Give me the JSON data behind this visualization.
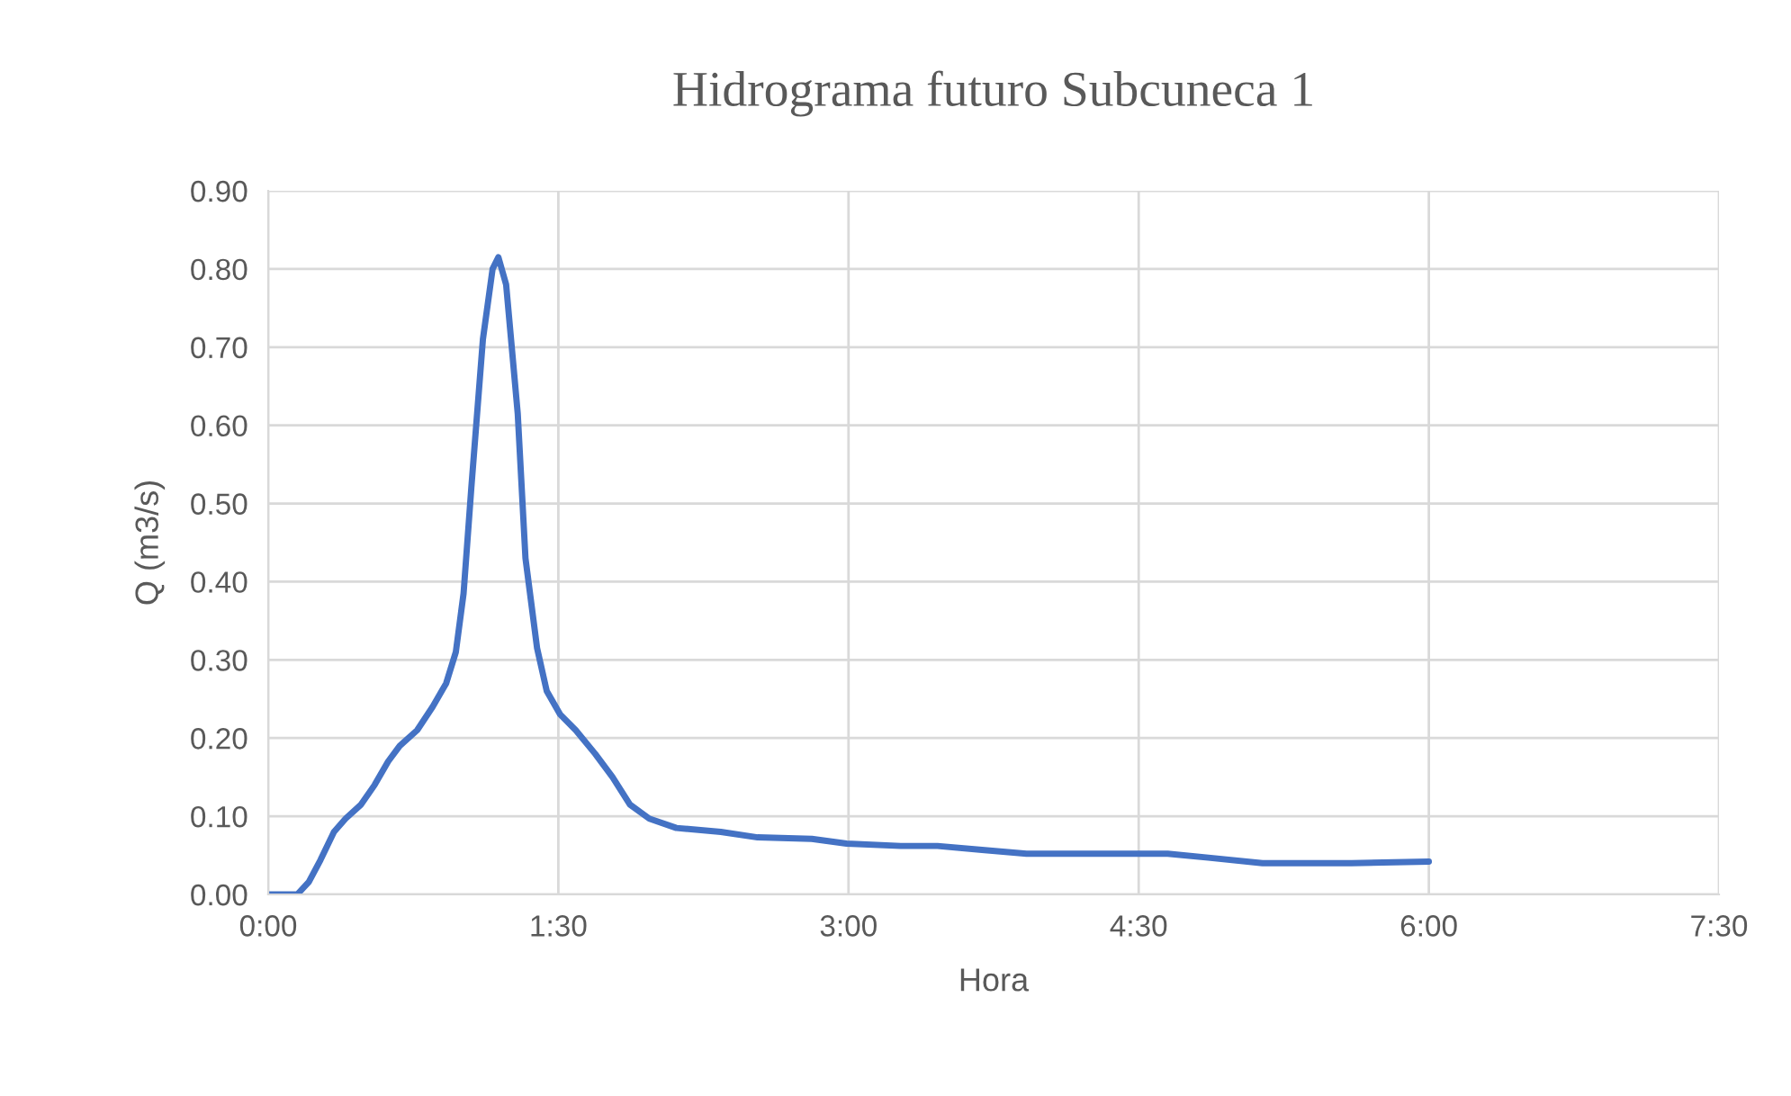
{
  "chart_data": {
    "type": "line",
    "title": "Hidrograma futuro Subcuneca 1",
    "xlabel": "Hora",
    "ylabel": "Q (m3/s)",
    "x": [
      0,
      0.15,
      0.21,
      0.27,
      0.34,
      0.4,
      0.48,
      0.55,
      0.62,
      0.68,
      0.77,
      0.85,
      0.92,
      0.97,
      1.01,
      1.05,
      1.11,
      1.16,
      1.19,
      1.23,
      1.29,
      1.33,
      1.39,
      1.44,
      1.51,
      1.59,
      1.69,
      1.78,
      1.87,
      1.97,
      2.11,
      2.34,
      2.53,
      2.81,
      2.99,
      3.27,
      3.46,
      3.69,
      3.92,
      4.2,
      4.65,
      4.86,
      5.14,
      5.6,
      6.0
    ],
    "series": [
      {
        "color": "#4472c4",
        "values": [
          0,
          0,
          0.016,
          0.044,
          0.08,
          0.097,
          0.115,
          0.14,
          0.17,
          0.19,
          0.21,
          0.24,
          0.27,
          0.31,
          0.385,
          0.52,
          0.71,
          0.8,
          0.815,
          0.78,
          0.615,
          0.43,
          0.315,
          0.26,
          0.23,
          0.21,
          0.18,
          0.15,
          0.115,
          0.097,
          0.085,
          0.08,
          0.073,
          0.071,
          0.065,
          0.062,
          0.062,
          0.057,
          0.052,
          0.052,
          0.052,
          0.047,
          0.04,
          0.04,
          0.042
        ]
      }
    ],
    "xlim": [
      0,
      7.5
    ],
    "xticks": [
      {
        "value": 0,
        "label": "0:00"
      },
      {
        "value": 1.5,
        "label": "1:30"
      },
      {
        "value": 3,
        "label": "3:00"
      },
      {
        "value": 4.5,
        "label": "4:30"
      },
      {
        "value": 6,
        "label": "6:00"
      },
      {
        "value": 7.5,
        "label": "7:30"
      }
    ],
    "ylim": [
      0,
      0.9
    ],
    "yticks": [
      {
        "value": 0,
        "label": "0.00"
      },
      {
        "value": 0.1,
        "label": "0.10"
      },
      {
        "value": 0.2,
        "label": "0.20"
      },
      {
        "value": 0.3,
        "label": "0.30"
      },
      {
        "value": 0.4,
        "label": "0.40"
      },
      {
        "value": 0.5,
        "label": "0.50"
      },
      {
        "value": 0.6,
        "label": "0.60"
      },
      {
        "value": 0.7,
        "label": "0.70"
      },
      {
        "value": 0.8,
        "label": "0.80"
      },
      {
        "value": 0.9,
        "label": "0.90"
      }
    ],
    "grid": true,
    "legend": false
  }
}
